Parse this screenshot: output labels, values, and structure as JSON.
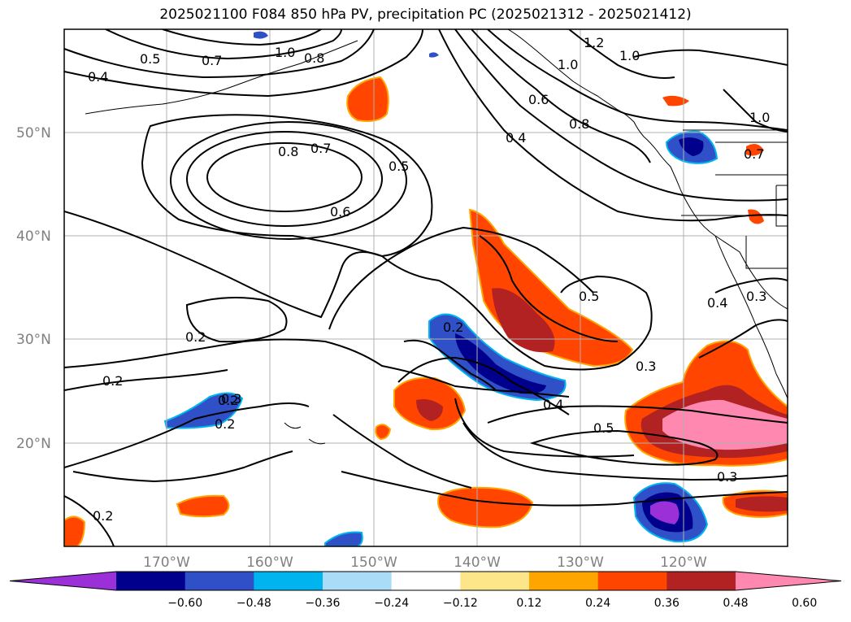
{
  "title": "2025021100 F084 850 hPa PV, precipitation PC (2025021312 - 2025021412)",
  "lat_labels": [
    "50°N",
    "40°N",
    "30°N",
    "20°N"
  ],
  "lon_labels": [
    "170°W",
    "160°W",
    "150°W",
    "140°W",
    "130°W",
    "120°W"
  ],
  "contour_labels": [
    "0.5",
    "0.7",
    "1.0",
    "0.8",
    "0.4",
    "1.2",
    "1.0",
    "1.0",
    "0.6",
    "0.8",
    "0.4",
    "1.0",
    "0.7",
    "0.8",
    "0.7",
    "0.5",
    "0.6",
    "0.5",
    "0.3",
    "0.4",
    "0.3",
    "0.2",
    "0.2",
    "0.2",
    "0.3",
    "0.2",
    "0.2",
    "0.4",
    "0.5",
    "0.3",
    "0.2"
  ],
  "colorbar": {
    "colors": [
      "#9b30d8",
      "#00008c",
      "#3050c8",
      "#00b4f0",
      "#aadcf8",
      "#ffffff",
      "#fde68a",
      "#ffa500",
      "#ff4500",
      "#b22222",
      "#ff88b0"
    ],
    "tick_labels": [
      "−0.60",
      "−0.48",
      "−0.36",
      "−0.24",
      "−0.12",
      "0.12",
      "0.24",
      "0.36",
      "0.48",
      "0.60"
    ]
  }
}
